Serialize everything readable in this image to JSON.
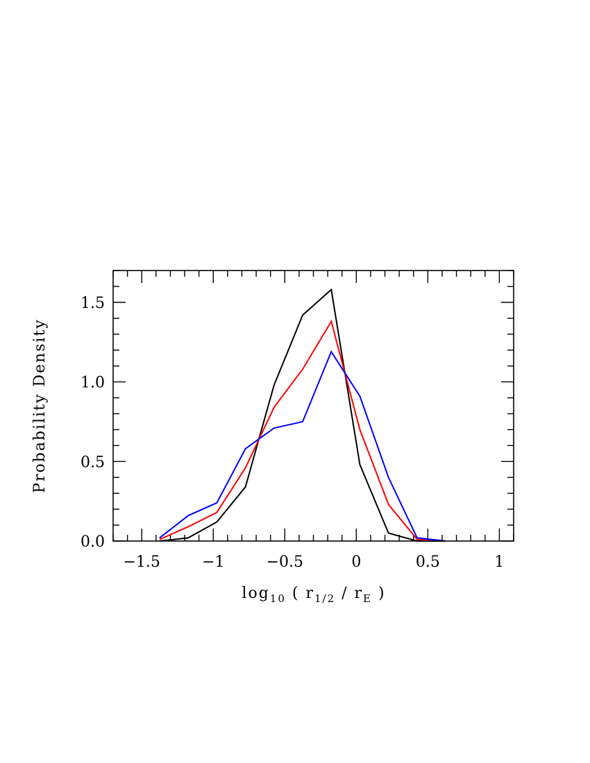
{
  "chart_data": {
    "type": "line",
    "title": "",
    "xlabel": {
      "base": "log",
      "sub": "10",
      "open": " ( r",
      "sub2": "1/2",
      "mid": " / r",
      "sub3": "E",
      "close": " )"
    },
    "ylabel": "Probability Density",
    "xlim": [
      -1.7,
      1.1
    ],
    "ylim": [
      0,
      1.7
    ],
    "x_ticks": [
      {
        "value": -1.5,
        "label": "−1.5"
      },
      {
        "value": -1.0,
        "label": "−1"
      },
      {
        "value": -0.5,
        "label": "−0.5"
      },
      {
        "value": 0.0,
        "label": "0"
      },
      {
        "value": 0.5,
        "label": "0.5"
      },
      {
        "value": 1.0,
        "label": "1"
      }
    ],
    "y_ticks": [
      {
        "value": 0.0,
        "label": "0.0"
      },
      {
        "value": 0.5,
        "label": "0.5"
      },
      {
        "value": 1.0,
        "label": "1.0"
      },
      {
        "value": 1.5,
        "label": "1.5"
      }
    ],
    "x_minor_step": 0.1,
    "y_minor_step": 0.1,
    "grid": false,
    "legend": "none",
    "x": [
      -1.375,
      -1.175,
      -0.975,
      -0.775,
      -0.575,
      -0.375,
      -0.175,
      0.025,
      0.225,
      0.425,
      0.625
    ],
    "series": [
      {
        "color": "#000000",
        "values": [
          0.0,
          0.02,
          0.12,
          0.34,
          0.98,
          1.42,
          1.58,
          0.48,
          0.05,
          0.0,
          0.0
        ]
      },
      {
        "color": "#ff0000",
        "values": [
          0.01,
          0.09,
          0.18,
          0.46,
          0.84,
          1.08,
          1.38,
          0.7,
          0.23,
          0.01,
          0.0
        ]
      },
      {
        "color": "#0000ff",
        "values": [
          0.02,
          0.16,
          0.24,
          0.58,
          0.71,
          0.75,
          1.19,
          0.91,
          0.4,
          0.02,
          0.0
        ]
      }
    ]
  }
}
